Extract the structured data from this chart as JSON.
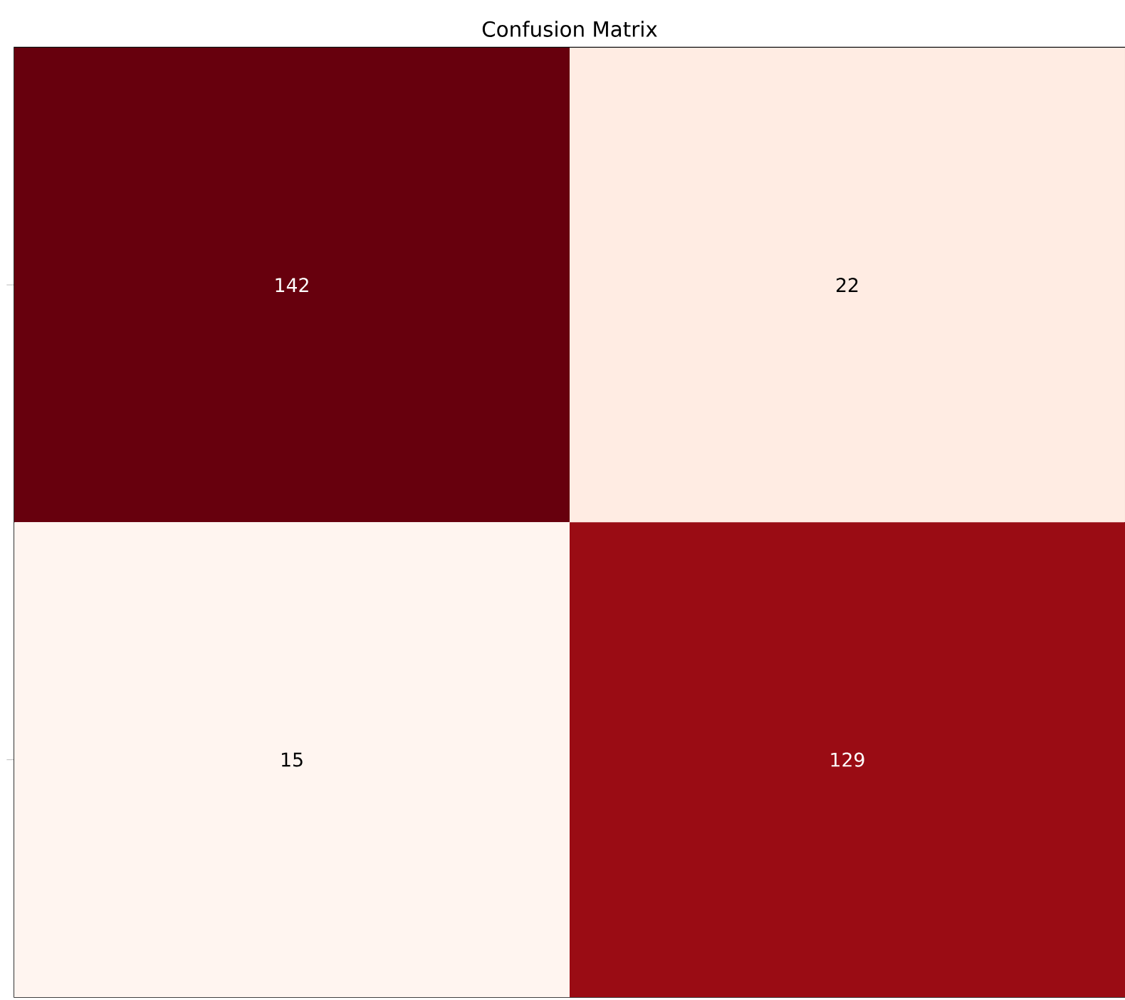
{
  "chart_data": {
    "type": "heatmap",
    "title": "Confusion Matrix",
    "categories": [
      null,
      null
    ],
    "y_categories": [
      null,
      null
    ],
    "cells": [
      [
        142,
        22
      ],
      [
        15,
        129
      ]
    ],
    "cell_labels": [
      [
        "142",
        "22"
      ],
      [
        "15",
        "129"
      ]
    ]
  }
}
